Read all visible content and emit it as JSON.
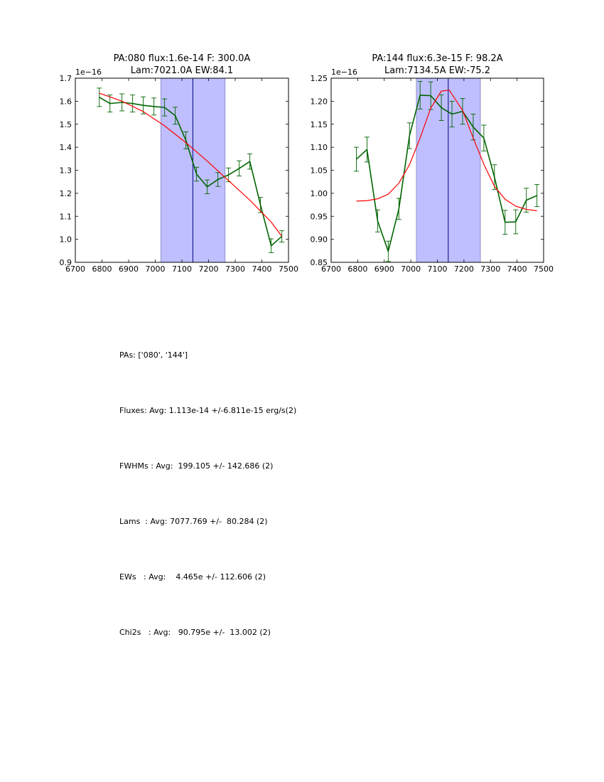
{
  "chart_data": [
    {
      "type": "line",
      "title": "PA:080 flux:1.6e-14 F: 300.0A\nLam:7021.0A EW:84.1",
      "xlim": [
        6700,
        7500
      ],
      "ylim": [
        0.9,
        1.7
      ],
      "xticks": [
        6700,
        6800,
        6900,
        7000,
        7100,
        7200,
        7300,
        7400,
        7500
      ],
      "yticks": [
        "0.9",
        "1.0",
        "1.1",
        "1.2",
        "1.3",
        "1.4",
        "1.5",
        "1.6",
        "1.7"
      ],
      "y_scale_label": "1e−16",
      "shaded_region": [
        7021,
        7262
      ],
      "center_line": 7141,
      "series": [
        {
          "name": "data",
          "color": "#006400",
          "x": [
            6790,
            6830,
            6875,
            6915,
            6955,
            6995,
            7035,
            7075,
            7115,
            7155,
            7195,
            7235,
            7275,
            7315,
            7355,
            7395,
            7435,
            7475
          ],
          "y": [
            1.617,
            1.59,
            1.595,
            1.59,
            1.582,
            1.577,
            1.573,
            1.537,
            1.43,
            1.283,
            1.228,
            1.26,
            1.28,
            1.308,
            1.338,
            1.149,
            0.972,
            1.013
          ],
          "err": [
            0.04,
            0.037,
            0.037,
            0.037,
            0.037,
            0.037,
            0.037,
            0.037,
            0.037,
            0.03,
            0.03,
            0.03,
            0.03,
            0.033,
            0.033,
            0.033,
            0.03,
            0.025
          ]
        },
        {
          "name": "fit",
          "color": "#ff0000",
          "x": [
            6790,
            6875,
            6955,
            7035,
            7115,
            7195,
            7275,
            7355,
            7435,
            7475
          ],
          "y": [
            1.635,
            1.6,
            1.555,
            1.493,
            1.42,
            1.34,
            1.255,
            1.17,
            1.075,
            1.013
          ]
        }
      ]
    },
    {
      "type": "line",
      "title": "PA:144 flux:6.3e-15 F: 98.2A\nLam:7134.5A EW:-75.2",
      "xlim": [
        6700,
        7500
      ],
      "ylim": [
        0.85,
        1.25
      ],
      "xticks": [
        6700,
        6800,
        6900,
        7000,
        7100,
        7200,
        7300,
        7400,
        7500
      ],
      "yticks": [
        "0.85",
        "0.90",
        "0.95",
        "1.00",
        "1.05",
        "1.10",
        "1.15",
        "1.20",
        "1.25"
      ],
      "y_scale_label": "1e−16",
      "shaded_region": [
        7021,
        7262
      ],
      "center_line": 7141,
      "series": [
        {
          "name": "data",
          "color": "#006400",
          "x": [
            6795,
            6835,
            6875,
            6915,
            6955,
            6995,
            7035,
            7075,
            7115,
            7155,
            7195,
            7235,
            7275,
            7315,
            7355,
            7395,
            7435,
            7475
          ],
          "y": [
            1.074,
            1.095,
            0.94,
            0.874,
            0.966,
            1.125,
            1.213,
            1.212,
            1.186,
            1.172,
            1.178,
            1.144,
            1.12,
            1.035,
            0.937,
            0.938,
            0.985,
            0.995
          ],
          "err": [
            0.026,
            0.027,
            0.024,
            0.022,
            0.023,
            0.028,
            0.03,
            0.03,
            0.028,
            0.028,
            0.028,
            0.028,
            0.028,
            0.027,
            0.026,
            0.026,
            0.026,
            0.024
          ]
        },
        {
          "name": "fit",
          "color": "#ff0000",
          "x": [
            6795,
            6835,
            6875,
            6915,
            6955,
            6995,
            7035,
            7075,
            7115,
            7145,
            7195,
            7235,
            7275,
            7315,
            7355,
            7395,
            7435,
            7475
          ],
          "y": [
            0.983,
            0.984,
            0.988,
            0.998,
            1.022,
            1.062,
            1.12,
            1.185,
            1.222,
            1.224,
            1.18,
            1.12,
            1.063,
            1.015,
            0.987,
            0.972,
            0.965,
            0.962
          ]
        }
      ]
    }
  ],
  "stats": {
    "pas": "PAs: ['080', '144']",
    "fluxes": "Fluxes: Avg: 1.113e-14 +/-6.811e-15 erg/s(2)",
    "fwhms": "FWHMs : Avg:  199.105 +/- 142.686 (2)",
    "lams": "Lams  : Avg: 7077.769 +/-  80.284 (2)",
    "ews": "EWs   : Avg:    4.465e +/- 112.606 (2)",
    "chi2s": "Chi2s   : Avg:   90.795e +/-  13.002 (2)"
  }
}
